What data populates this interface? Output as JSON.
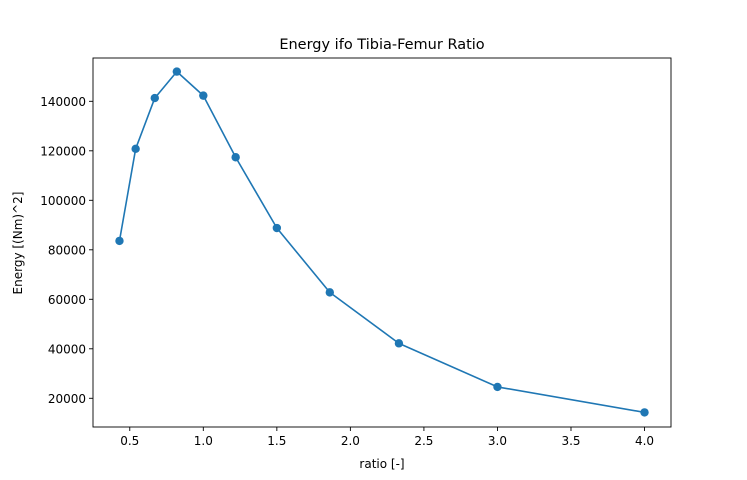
{
  "chart_data": {
    "type": "line",
    "title": "Energy ifo Tibia-Femur Ratio",
    "xlabel": "ratio [-]",
    "ylabel": "Energy [(Nm)^2]",
    "xlim": [
      0.25,
      4.18
    ],
    "ylim": [
      8400,
      157500
    ],
    "grid": false,
    "legend": "none",
    "marker": "circle",
    "color": "#1f77b4",
    "x_ticks": [
      0.5,
      1.0,
      1.5,
      2.0,
      2.5,
      3.0,
      3.5,
      4.0
    ],
    "x_tick_labels": [
      "0.5",
      "1.0",
      "1.5",
      "2.0",
      "2.5",
      "3.0",
      "3.5",
      "4.0"
    ],
    "y_ticks": [
      20000,
      40000,
      60000,
      80000,
      100000,
      120000,
      140000
    ],
    "y_tick_labels": [
      "20000",
      "40000",
      "60000",
      "80000",
      "100000",
      "120000",
      "140000"
    ],
    "series": [
      {
        "x": [
          0.43,
          0.54,
          0.67,
          0.82,
          1.0,
          1.22,
          1.5,
          1.86,
          2.33,
          3.0,
          4.0
        ],
        "y": [
          83600,
          120800,
          141300,
          152000,
          142300,
          117400,
          88800,
          62800,
          42200,
          24600,
          14300
        ]
      }
    ]
  }
}
